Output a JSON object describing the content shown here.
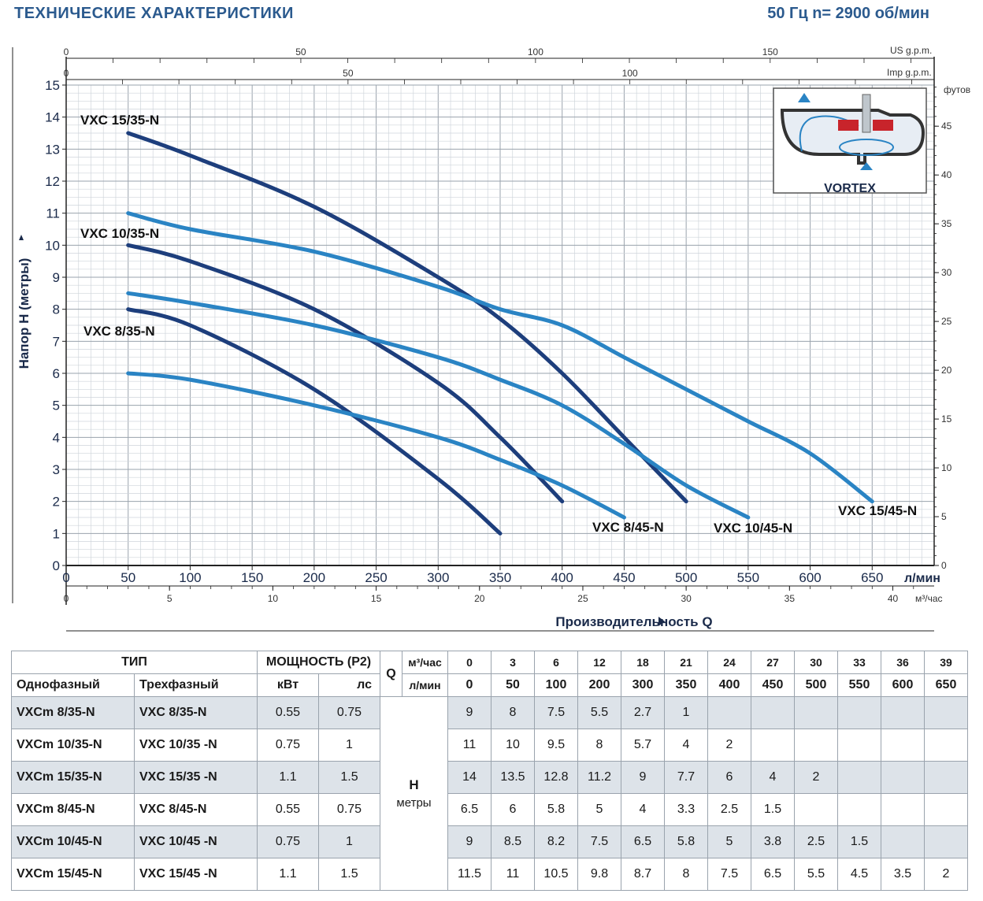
{
  "header": {
    "title": "ТЕХНИЧЕСКИЕ ХАРАКТЕРИСТИКИ",
    "frequency": "50 Гц  n= 2900 об/мин"
  },
  "vortex_label": "VORTEX",
  "chart_data": {
    "type": "line",
    "ylabel": "Напор Н (метры)",
    "xlabel": "Производительность Q",
    "xunit_primary": "л/мин",
    "xunit_m3": "м³/час",
    "xunit_us": "US g.p.m.",
    "xunit_imp": "Imp g.p.m.",
    "y2unit": "футов",
    "xlim": [
      0,
      700
    ],
    "ylim": [
      0,
      15
    ],
    "x_ticks": [
      0,
      50,
      100,
      150,
      200,
      250,
      300,
      350,
      400,
      450,
      500,
      550,
      600,
      650
    ],
    "y_ticks": [
      0,
      1,
      2,
      3,
      4,
      5,
      6,
      7,
      8,
      9,
      10,
      11,
      12,
      13,
      14,
      15
    ],
    "m3h_ticks": [
      0,
      5,
      10,
      15,
      20,
      25,
      30,
      35,
      40
    ],
    "us_gpm_ticks": [
      0,
      50,
      100,
      150
    ],
    "imp_gpm_ticks": [
      0,
      50,
      100
    ],
    "feet_ticks": [
      0,
      5,
      10,
      15,
      20,
      25,
      30,
      35,
      40,
      45
    ],
    "series": [
      {
        "name": "VXC 8/35-N",
        "color": "#1d3e7c",
        "x": [
          50,
          100,
          200,
          300,
          350
        ],
        "y": [
          8,
          7.5,
          5.5,
          2.7,
          1
        ]
      },
      {
        "name": "VXC 10/35-N",
        "color": "#1d3e7c",
        "x": [
          50,
          100,
          200,
          300,
          350,
          400
        ],
        "y": [
          10,
          9.5,
          8,
          5.7,
          4,
          2
        ]
      },
      {
        "name": "VXC 15/35-N",
        "color": "#1d3e7c",
        "x": [
          50,
          100,
          200,
          300,
          350,
          400,
          450,
          500
        ],
        "y": [
          13.5,
          12.8,
          11.2,
          9,
          7.7,
          6,
          4,
          2
        ]
      },
      {
        "name": "VXC 8/45-N",
        "color": "#2a84c4",
        "x": [
          50,
          100,
          200,
          300,
          350,
          400,
          450
        ],
        "y": [
          6,
          5.8,
          5,
          4,
          3.3,
          2.5,
          1.5
        ]
      },
      {
        "name": "VXC 10/45-N",
        "color": "#2a84c4",
        "x": [
          50,
          100,
          200,
          300,
          350,
          400,
          450,
          500,
          550
        ],
        "y": [
          8.5,
          8.2,
          7.5,
          6.5,
          5.8,
          5,
          3.8,
          2.5,
          1.5
        ]
      },
      {
        "name": "VXC 15/45-N",
        "color": "#2a84c4",
        "x": [
          50,
          100,
          200,
          300,
          350,
          400,
          450,
          500,
          550,
          600,
          650
        ],
        "y": [
          11,
          10.5,
          9.8,
          8.7,
          8,
          7.5,
          6.5,
          5.5,
          4.5,
          3.5,
          2
        ]
      }
    ]
  },
  "table": {
    "header_type": "ТИП",
    "header_power": "МОЩНОСТЬ (P2)",
    "header_q": "Q",
    "header_m3h": "м³/час",
    "header_lmin": "л/мин",
    "header_single": "Однофазный",
    "header_three": "Трехфазный",
    "header_kw": "кВт",
    "header_hp": "лс",
    "h_label": "H",
    "h_unit": "метры",
    "m3h": [
      "0",
      "3",
      "6",
      "12",
      "18",
      "21",
      "24",
      "27",
      "30",
      "33",
      "36",
      "39"
    ],
    "lmin": [
      "0",
      "50",
      "100",
      "200",
      "300",
      "350",
      "400",
      "450",
      "500",
      "550",
      "600",
      "650"
    ],
    "rows": [
      {
        "single": "VXCm  8/35-N",
        "three": "VXC  8/35-N",
        "kw": "0.55",
        "hp": "0.75",
        "h": [
          "9",
          "8",
          "7.5",
          "5.5",
          "2.7",
          "1",
          "",
          "",
          "",
          "",
          "",
          ""
        ]
      },
      {
        "single": "VXCm 10/35-N",
        "three": "VXC 10/35 -N",
        "kw": "0.75",
        "hp": "1",
        "h": [
          "11",
          "10",
          "9.5",
          "8",
          "5.7",
          "4",
          "2",
          "",
          "",
          "",
          "",
          ""
        ]
      },
      {
        "single": "VXCm 15/35-N",
        "three": "VXC 15/35 -N",
        "kw": "1.1",
        "hp": "1.5",
        "h": [
          "14",
          "13.5",
          "12.8",
          "11.2",
          "9",
          "7.7",
          "6",
          "4",
          "2",
          "",
          "",
          ""
        ]
      },
      {
        "single": "VXCm  8/45-N",
        "three": "VXC  8/45-N",
        "kw": "0.55",
        "hp": "0.75",
        "h": [
          "6.5",
          "6",
          "5.8",
          "5",
          "4",
          "3.3",
          "2.5",
          "1.5",
          "",
          "",
          "",
          ""
        ]
      },
      {
        "single": "VXCm 10/45-N",
        "three": "VXC 10/45 -N",
        "kw": "0.75",
        "hp": "1",
        "h": [
          "9",
          "8.5",
          "8.2",
          "7.5",
          "6.5",
          "5.8",
          "5",
          "3.8",
          "2.5",
          "1.5",
          "",
          ""
        ]
      },
      {
        "single": "VXCm 15/45-N",
        "three": "VXC 15/45 -N",
        "kw": "1.1",
        "hp": "1.5",
        "h": [
          "11.5",
          "11",
          "10.5",
          "9.8",
          "8.7",
          "8",
          "7.5",
          "6.5",
          "5.5",
          "4.5",
          "3.5",
          "2"
        ]
      }
    ]
  }
}
